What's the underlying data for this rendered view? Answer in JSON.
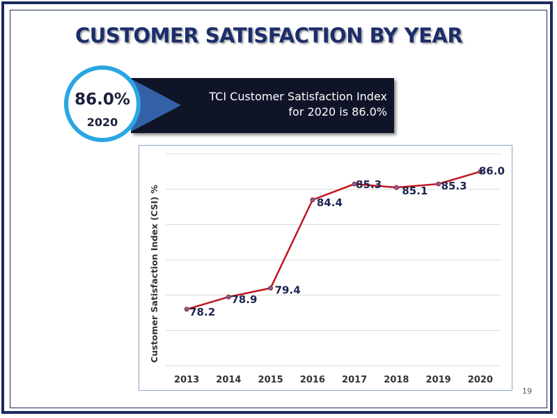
{
  "slide": {
    "title": "CUSTOMER SATISFACTION BY YEAR",
    "page_number": "19"
  },
  "highlight": {
    "value": "86.0%",
    "year": "2020",
    "banner_line1": "TCI Customer Satisfaction Index",
    "banner_line2": "for 2020 is 86.0%"
  },
  "colors": {
    "title": "#1c2e6b",
    "frame": "#1b2a5e",
    "circle_ring": "#2aa6e2",
    "banner_bg": "#101427",
    "banner_arrow": "#3261a8",
    "line": "#c0141c",
    "marker": "#5b6fb8",
    "data_label": "#1b2450",
    "gridline": "#d9d9d9"
  },
  "chart_data": {
    "type": "line",
    "title": "",
    "xlabel": "",
    "ylabel": "Customer Satisfaction Index (CSI) %",
    "categories": [
      "2013",
      "2014",
      "2015",
      "2016",
      "2017",
      "2018",
      "2019",
      "2020"
    ],
    "series": [
      {
        "values": [
          78.2,
          78.9,
          79.4,
          84.4,
          85.3,
          85.1,
          85.3,
          86.0
        ]
      }
    ],
    "data_labels": [
      "78.2",
      "78.9",
      "79.4",
      "84.4",
      "85.3",
      "85.1",
      "85.3",
      "86.0"
    ],
    "ylim": [
      75,
      87
    ],
    "y_tick_labels_shown": false,
    "grid": true,
    "legend": "none"
  }
}
